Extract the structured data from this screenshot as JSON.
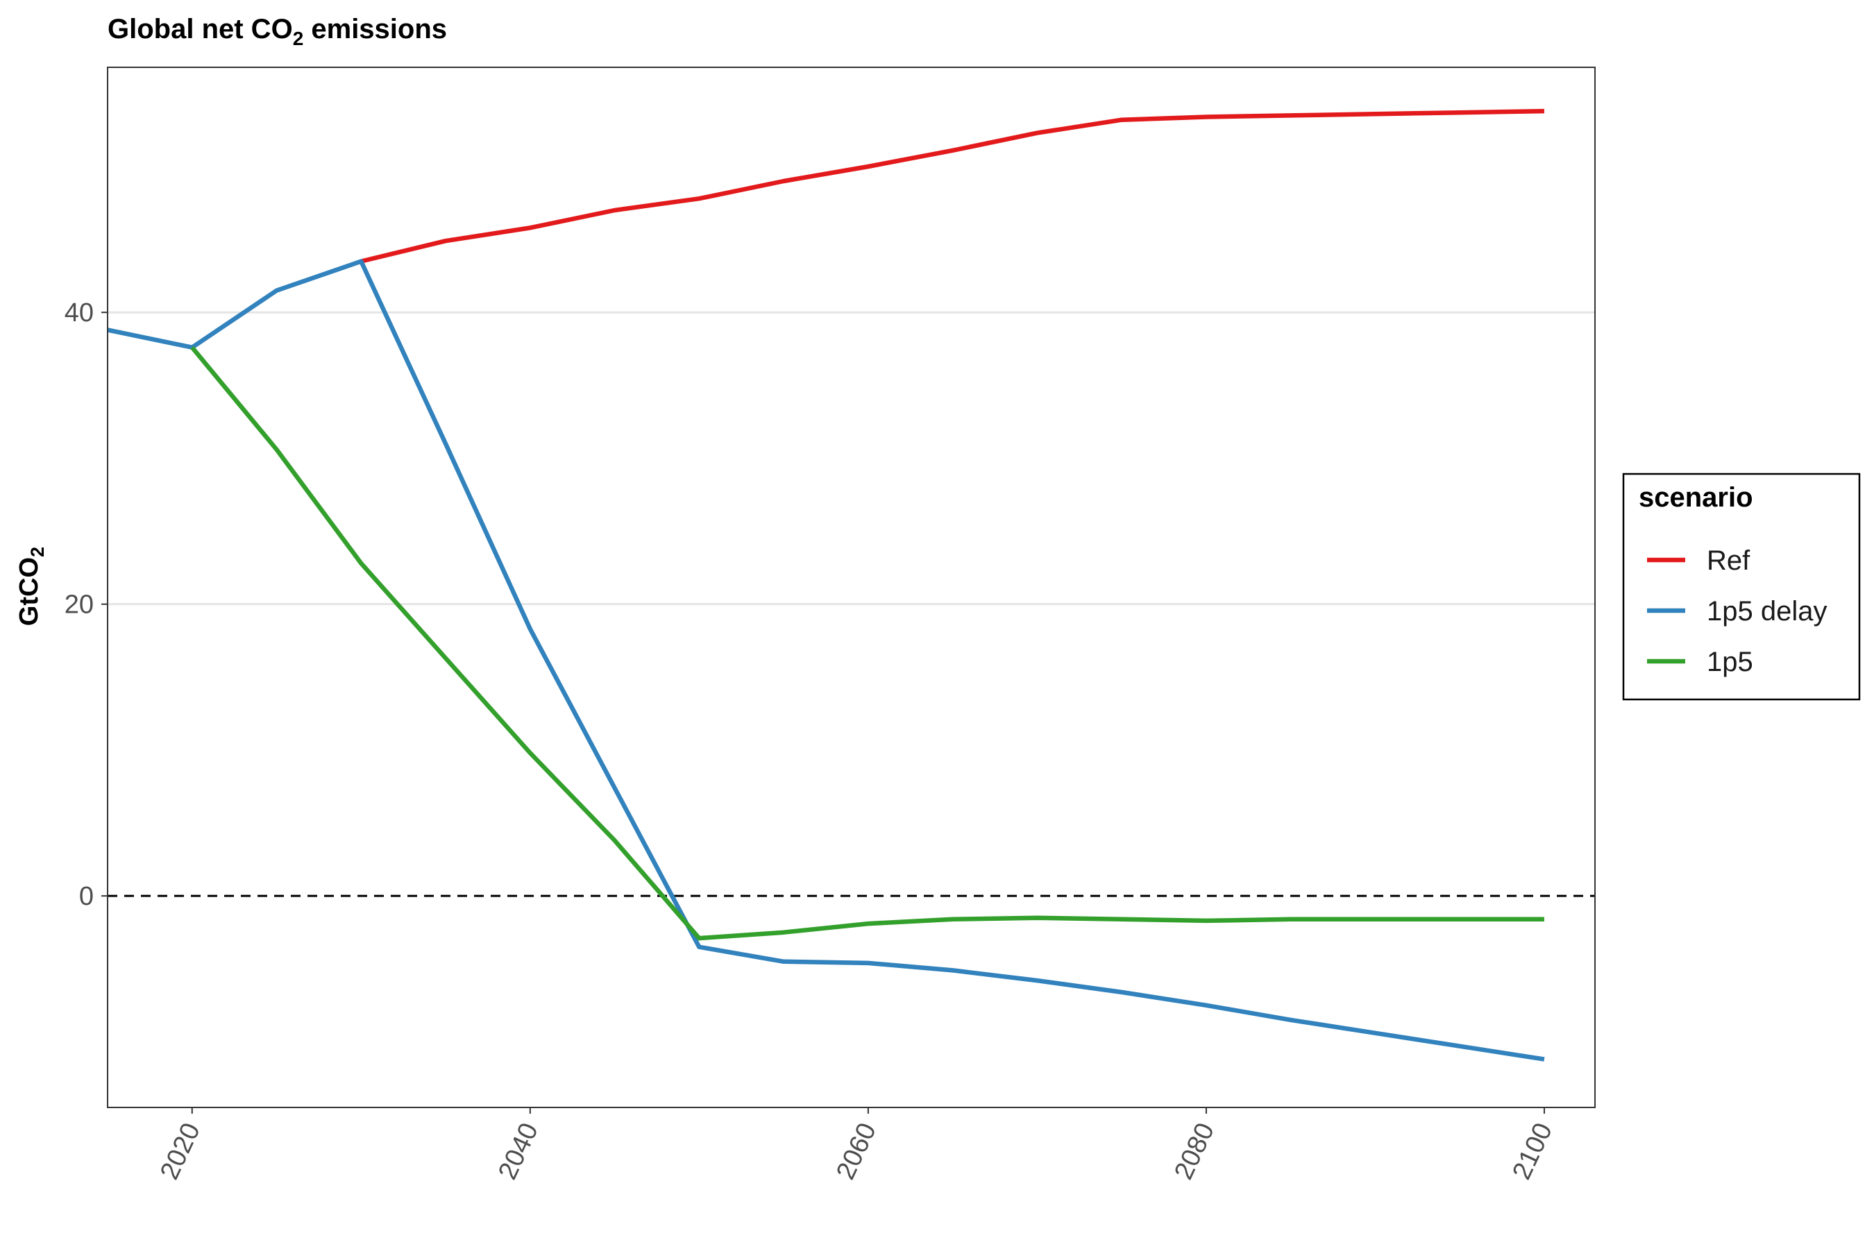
{
  "chart_data": {
    "type": "line",
    "title": {
      "main": "Global net CO",
      "subscript": "2",
      "suffix": " emissions"
    },
    "ylabel": {
      "main": "GtCO",
      "subscript": "2"
    },
    "xlabel": "",
    "xlim": [
      2015,
      2103
    ],
    "ylim": [
      -14.5,
      56.8
    ],
    "x_ticks": [
      2020,
      2040,
      2060,
      2080,
      2100
    ],
    "x_tick_labels": [
      "2020",
      "2040",
      "2060",
      "2080",
      "2100"
    ],
    "y_ticks": [
      0,
      20,
      40
    ],
    "y_tick_labels": [
      "0",
      "20",
      "40"
    ],
    "y_gridlines": [
      20,
      40
    ],
    "reference_line": {
      "y": 0,
      "style": "dashed"
    },
    "grid": "horizontal major lines",
    "legend": {
      "title": "scenario",
      "position": "right",
      "entries": [
        "Ref",
        "1p5 delay",
        "1p5"
      ]
    },
    "series": [
      {
        "name": "Ref",
        "color": "#e31a1c",
        "x": [
          2030,
          2035,
          2040,
          2045,
          2050,
          2055,
          2060,
          2065,
          2070,
          2075,
          2080,
          2085,
          2090,
          2095,
          2100
        ],
        "values": [
          43.5,
          44.9,
          45.8,
          47.0,
          47.8,
          49.0,
          50.0,
          51.1,
          52.3,
          53.2,
          53.4,
          53.5,
          53.6,
          53.7,
          53.8
        ]
      },
      {
        "name": "1p5 delay",
        "color": "#3182bd",
        "x": [
          2015,
          2020,
          2025,
          2030,
          2035,
          2040,
          2045,
          2050,
          2055,
          2060,
          2065,
          2070,
          2075,
          2080,
          2085,
          2090,
          2095,
          2100
        ],
        "values": [
          38.8,
          37.6,
          41.5,
          43.5,
          31.0,
          18.3,
          7.4,
          -3.5,
          -4.5,
          -4.6,
          -5.1,
          -5.8,
          -6.6,
          -7.5,
          -8.5,
          -9.4,
          -10.3,
          -11.2
        ]
      },
      {
        "name": "1p5",
        "color": "#33a02c",
        "x": [
          2020,
          2025,
          2030,
          2035,
          2040,
          2045,
          2050,
          2055,
          2060,
          2065,
          2070,
          2075,
          2080,
          2085,
          2090,
          2095,
          2100
        ],
        "values": [
          37.6,
          30.6,
          22.8,
          16.3,
          9.8,
          3.8,
          -2.9,
          -2.5,
          -1.9,
          -1.6,
          -1.5,
          -1.6,
          -1.7,
          -1.6,
          -1.6,
          -1.6,
          -1.6
        ]
      }
    ]
  }
}
